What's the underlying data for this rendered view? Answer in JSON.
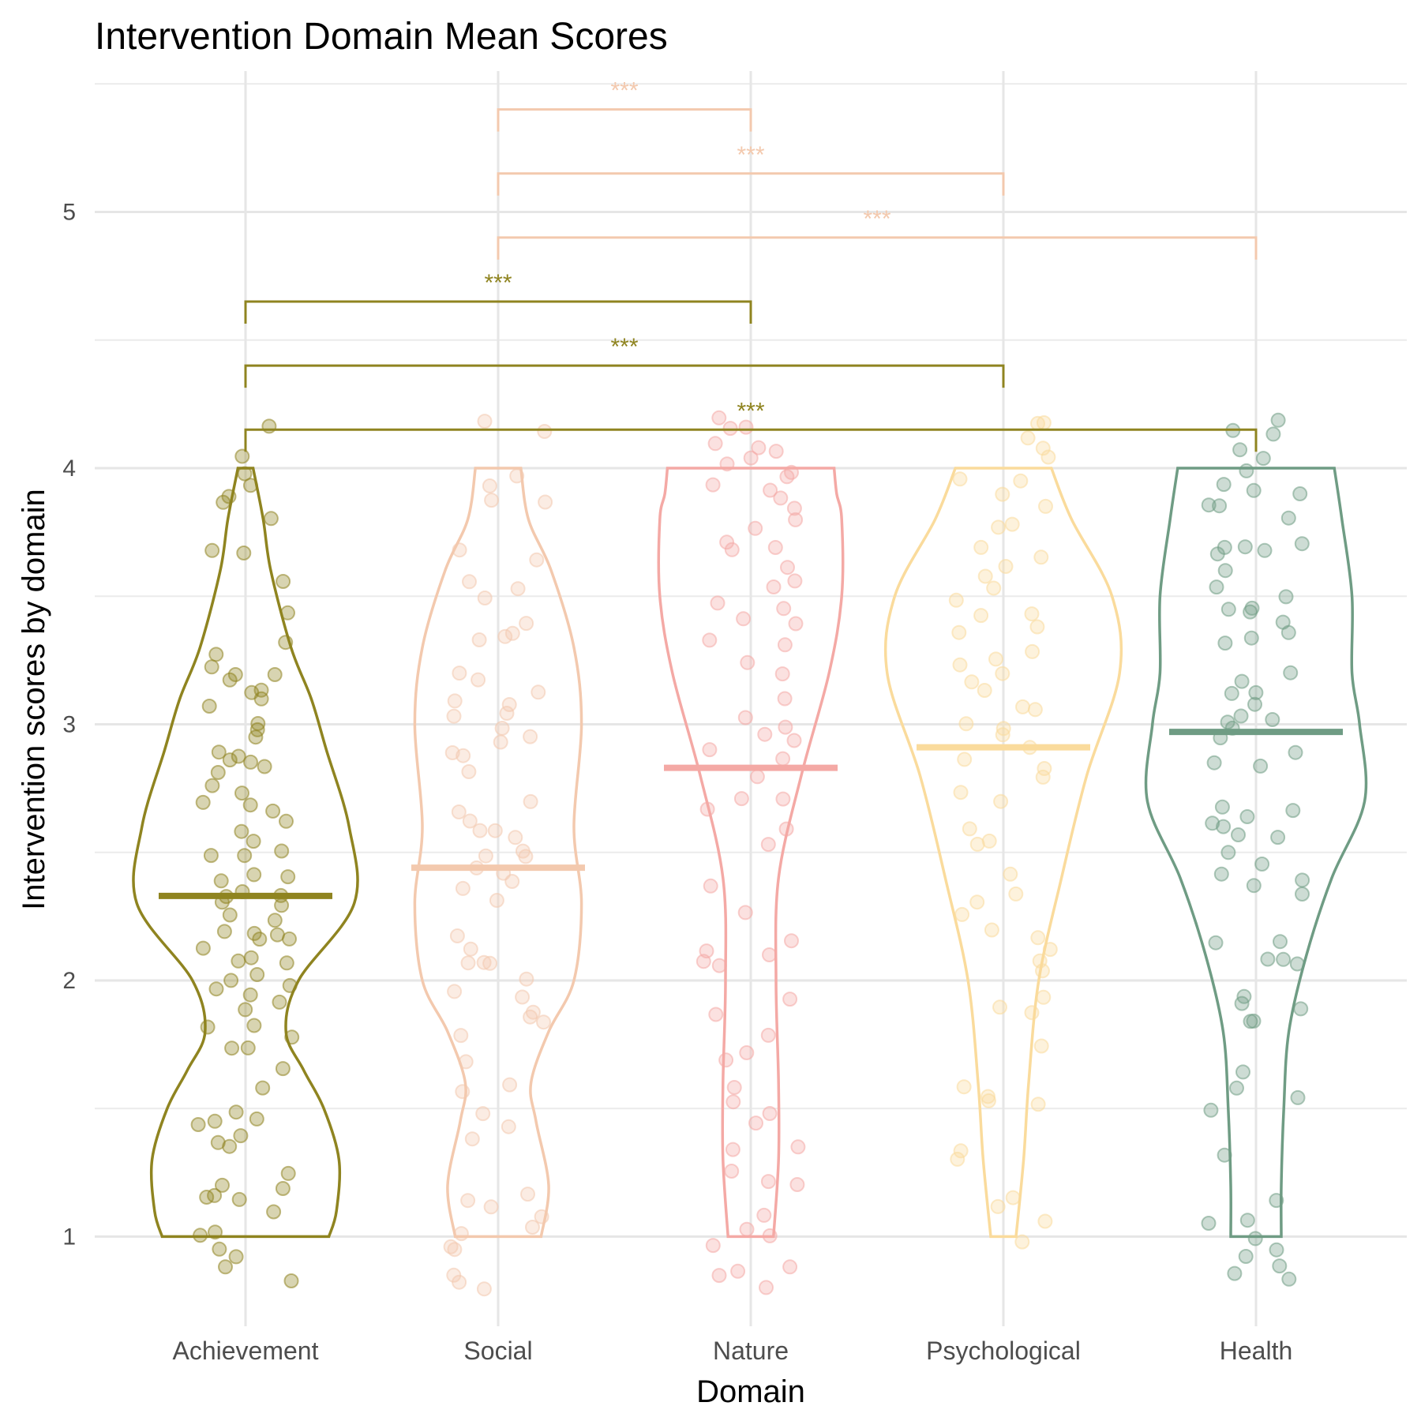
{
  "chart_data": {
    "type": "violin",
    "title": "Intervention Domain Mean Scores",
    "xlabel": "Domain",
    "ylabel": "Intervention scores by domain",
    "ylim": [
      0.65,
      5.55
    ],
    "yticks": [
      1,
      2,
      3,
      4,
      5
    ],
    "categories": [
      "Achievement",
      "Social",
      "Nature",
      "Psychological",
      "Health"
    ],
    "colors": [
      "#8F8420",
      "#F3C9AE",
      "#F4A9A5",
      "#FADB9C",
      "#6F9C84"
    ],
    "grid": true,
    "legend": "none",
    "series": [
      {
        "category": "Achievement",
        "mean": 2.33,
        "density": [
          [
            1.0,
            0.33
          ],
          [
            1.1,
            0.36
          ],
          [
            1.3,
            0.37
          ],
          [
            1.5,
            0.31
          ],
          [
            1.65,
            0.23
          ],
          [
            1.8,
            0.16
          ],
          [
            2.0,
            0.21
          ],
          [
            2.3,
            0.43
          ],
          [
            2.6,
            0.41
          ],
          [
            2.9,
            0.32
          ],
          [
            3.1,
            0.26
          ],
          [
            3.3,
            0.18
          ],
          [
            3.6,
            0.1
          ],
          [
            3.8,
            0.07
          ],
          [
            4.0,
            0.03
          ]
        ],
        "points": [
          0.81,
          0.89,
          0.93,
          0.95,
          1.0,
          1.02,
          1.11,
          1.14,
          1.16,
          1.17,
          1.19,
          1.2,
          1.25,
          1.35,
          1.37,
          1.41,
          1.43,
          1.44,
          1.46,
          1.47,
          1.57,
          1.67,
          1.73,
          1.74,
          1.77,
          1.8,
          1.82,
          1.88,
          1.92,
          1.94,
          1.96,
          2.0,
          2.02,
          2.04,
          2.06,
          2.08,
          2.1,
          2.13,
          2.15,
          2.16,
          2.17,
          2.18,
          2.2,
          2.23,
          2.25,
          2.28,
          2.3,
          2.32,
          2.34,
          2.35,
          2.37,
          2.4,
          2.42,
          2.48,
          2.49,
          2.5,
          2.55,
          2.57,
          2.62,
          2.68,
          2.7,
          2.71,
          2.73,
          2.77,
          2.8,
          2.82,
          2.85,
          2.86,
          2.88,
          2.9,
          2.96,
          2.98,
          3.02,
          3.09,
          3.11,
          3.13,
          3.15,
          3.18,
          3.2,
          3.21,
          3.23,
          3.28,
          3.31,
          3.42,
          3.54,
          3.66,
          3.68,
          3.81,
          3.85,
          3.9,
          3.93,
          3.99,
          4.03,
          4.18
        ]
      },
      {
        "category": "Social",
        "mean": 2.44,
        "density": [
          [
            1.0,
            0.17
          ],
          [
            1.2,
            0.2
          ],
          [
            1.45,
            0.15
          ],
          [
            1.6,
            0.13
          ],
          [
            1.8,
            0.2
          ],
          [
            2.0,
            0.3
          ],
          [
            2.3,
            0.33
          ],
          [
            2.6,
            0.3
          ],
          [
            3.0,
            0.33
          ],
          [
            3.3,
            0.3
          ],
          [
            3.6,
            0.21
          ],
          [
            3.8,
            0.12
          ],
          [
            4.0,
            0.09
          ]
        ],
        "points": [
          0.81,
          0.84,
          0.85,
          0.95,
          0.98,
          1.01,
          1.04,
          1.06,
          1.13,
          1.16,
          1.17,
          1.4,
          1.44,
          1.5,
          1.58,
          1.6,
          1.67,
          1.8,
          1.84,
          1.87,
          1.88,
          1.95,
          1.97,
          2.02,
          2.05,
          2.06,
          2.09,
          2.11,
          2.19,
          2.31,
          2.35,
          2.39,
          2.41,
          2.44,
          2.47,
          2.5,
          2.52,
          2.55,
          2.57,
          2.6,
          2.62,
          2.65,
          2.68,
          2.82,
          2.86,
          2.9,
          2.93,
          2.96,
          2.98,
          3.03,
          3.05,
          3.07,
          3.11,
          3.14,
          3.17,
          3.2,
          3.32,
          3.34,
          3.36,
          3.39,
          3.49,
          3.52,
          3.55,
          3.65,
          3.7,
          3.85,
          3.88,
          3.92,
          3.96,
          4.14,
          4.19
        ]
      },
      {
        "category": "Nature",
        "mean": 2.83,
        "density": [
          [
            1.0,
            0.09
          ],
          [
            1.3,
            0.11
          ],
          [
            1.6,
            0.11
          ],
          [
            2.0,
            0.1
          ],
          [
            2.4,
            0.11
          ],
          [
            2.8,
            0.2
          ],
          [
            3.2,
            0.31
          ],
          [
            3.5,
            0.36
          ],
          [
            3.8,
            0.36
          ],
          [
            3.9,
            0.34
          ],
          [
            4.0,
            0.33
          ]
        ],
        "points": [
          0.8,
          0.86,
          0.88,
          0.9,
          0.96,
          1.01,
          1.03,
          1.07,
          1.19,
          1.23,
          1.27,
          1.33,
          1.36,
          1.44,
          1.49,
          1.52,
          1.57,
          1.69,
          1.73,
          1.8,
          1.87,
          1.94,
          2.04,
          2.06,
          2.11,
          2.13,
          2.16,
          2.26,
          2.36,
          2.52,
          2.59,
          2.65,
          2.69,
          2.72,
          2.8,
          2.85,
          2.9,
          2.93,
          2.98,
          3.0,
          3.04,
          3.1,
          3.21,
          3.24,
          3.33,
          3.34,
          3.38,
          3.41,
          3.46,
          3.49,
          3.55,
          3.57,
          3.61,
          3.69,
          3.71,
          3.73,
          3.77,
          3.81,
          3.84,
          3.87,
          3.9,
          3.92,
          3.95,
          3.98,
          4.02,
          4.04,
          4.06,
          4.08,
          4.1,
          4.14,
          4.15,
          4.18
        ]
      },
      {
        "category": "Psychological",
        "mean": 2.91,
        "density": [
          [
            1.0,
            0.05
          ],
          [
            1.3,
            0.08
          ],
          [
            1.6,
            0.1
          ],
          [
            2.0,
            0.14
          ],
          [
            2.4,
            0.23
          ],
          [
            2.8,
            0.33
          ],
          [
            3.2,
            0.46
          ],
          [
            3.5,
            0.43
          ],
          [
            3.8,
            0.27
          ],
          [
            4.0,
            0.19
          ]
        ],
        "points": [
          0.99,
          1.05,
          1.12,
          1.16,
          1.3,
          1.34,
          1.5,
          1.53,
          1.55,
          1.6,
          1.76,
          1.86,
          1.89,
          1.94,
          2.05,
          2.08,
          2.11,
          2.17,
          2.2,
          2.27,
          2.3,
          2.34,
          2.4,
          2.52,
          2.56,
          2.6,
          2.68,
          2.72,
          2.78,
          2.82,
          2.85,
          2.9,
          2.94,
          2.98,
          3.01,
          3.05,
          3.08,
          3.12,
          3.16,
          3.2,
          3.23,
          3.26,
          3.3,
          3.35,
          3.38,
          3.41,
          3.44,
          3.48,
          3.52,
          3.58,
          3.62,
          3.66,
          3.69,
          3.75,
          3.79,
          3.85,
          3.9,
          3.93,
          3.96,
          4.04,
          4.08,
          4.13,
          4.17,
          4.18
        ]
      },
      {
        "category": "Health",
        "mean": 2.97,
        "density": [
          [
            1.0,
            0.1
          ],
          [
            1.2,
            0.1
          ],
          [
            1.5,
            0.11
          ],
          [
            1.8,
            0.13
          ],
          [
            2.1,
            0.2
          ],
          [
            2.4,
            0.3
          ],
          [
            2.7,
            0.43
          ],
          [
            3.0,
            0.41
          ],
          [
            3.2,
            0.38
          ],
          [
            3.5,
            0.38
          ],
          [
            3.8,
            0.34
          ],
          [
            4.0,
            0.31
          ]
        ],
        "points": [
          0.84,
          0.87,
          0.89,
          0.91,
          0.95,
          1.01,
          1.05,
          1.07,
          1.16,
          1.31,
          1.5,
          1.55,
          1.58,
          1.64,
          1.83,
          1.85,
          1.88,
          1.9,
          1.93,
          2.06,
          2.08,
          2.09,
          2.13,
          2.15,
          2.32,
          2.36,
          2.4,
          2.42,
          2.45,
          2.48,
          2.55,
          2.56,
          2.59,
          2.62,
          2.64,
          2.66,
          2.69,
          2.83,
          2.85,
          2.87,
          2.93,
          2.97,
          3.0,
          3.02,
          3.05,
          3.08,
          3.12,
          3.14,
          3.17,
          3.2,
          3.33,
          3.34,
          3.37,
          3.4,
          3.42,
          3.45,
          3.47,
          3.5,
          3.53,
          3.62,
          3.65,
          3.67,
          3.68,
          3.69,
          3.72,
          3.82,
          3.84,
          3.86,
          3.89,
          3.92,
          3.95,
          3.97,
          4.05,
          4.07,
          4.13,
          4.15,
          4.17
        ]
      }
    ],
    "comparisons": [
      {
        "from": "Social",
        "to": "Nature",
        "y": 5.4,
        "label": "***",
        "color": "#F3C9AE"
      },
      {
        "from": "Social",
        "to": "Psychological",
        "y": 5.15,
        "label": "***",
        "color": "#F3C9AE"
      },
      {
        "from": "Social",
        "to": "Health",
        "y": 4.9,
        "label": "***",
        "color": "#F3C9AE"
      },
      {
        "from": "Achievement",
        "to": "Nature",
        "y": 4.65,
        "label": "***",
        "color": "#8F8420"
      },
      {
        "from": "Achievement",
        "to": "Psychological",
        "y": 4.4,
        "label": "***",
        "color": "#8F8420"
      },
      {
        "from": "Achievement",
        "to": "Health",
        "y": 4.15,
        "label": "***",
        "color": "#8F8420"
      }
    ]
  }
}
